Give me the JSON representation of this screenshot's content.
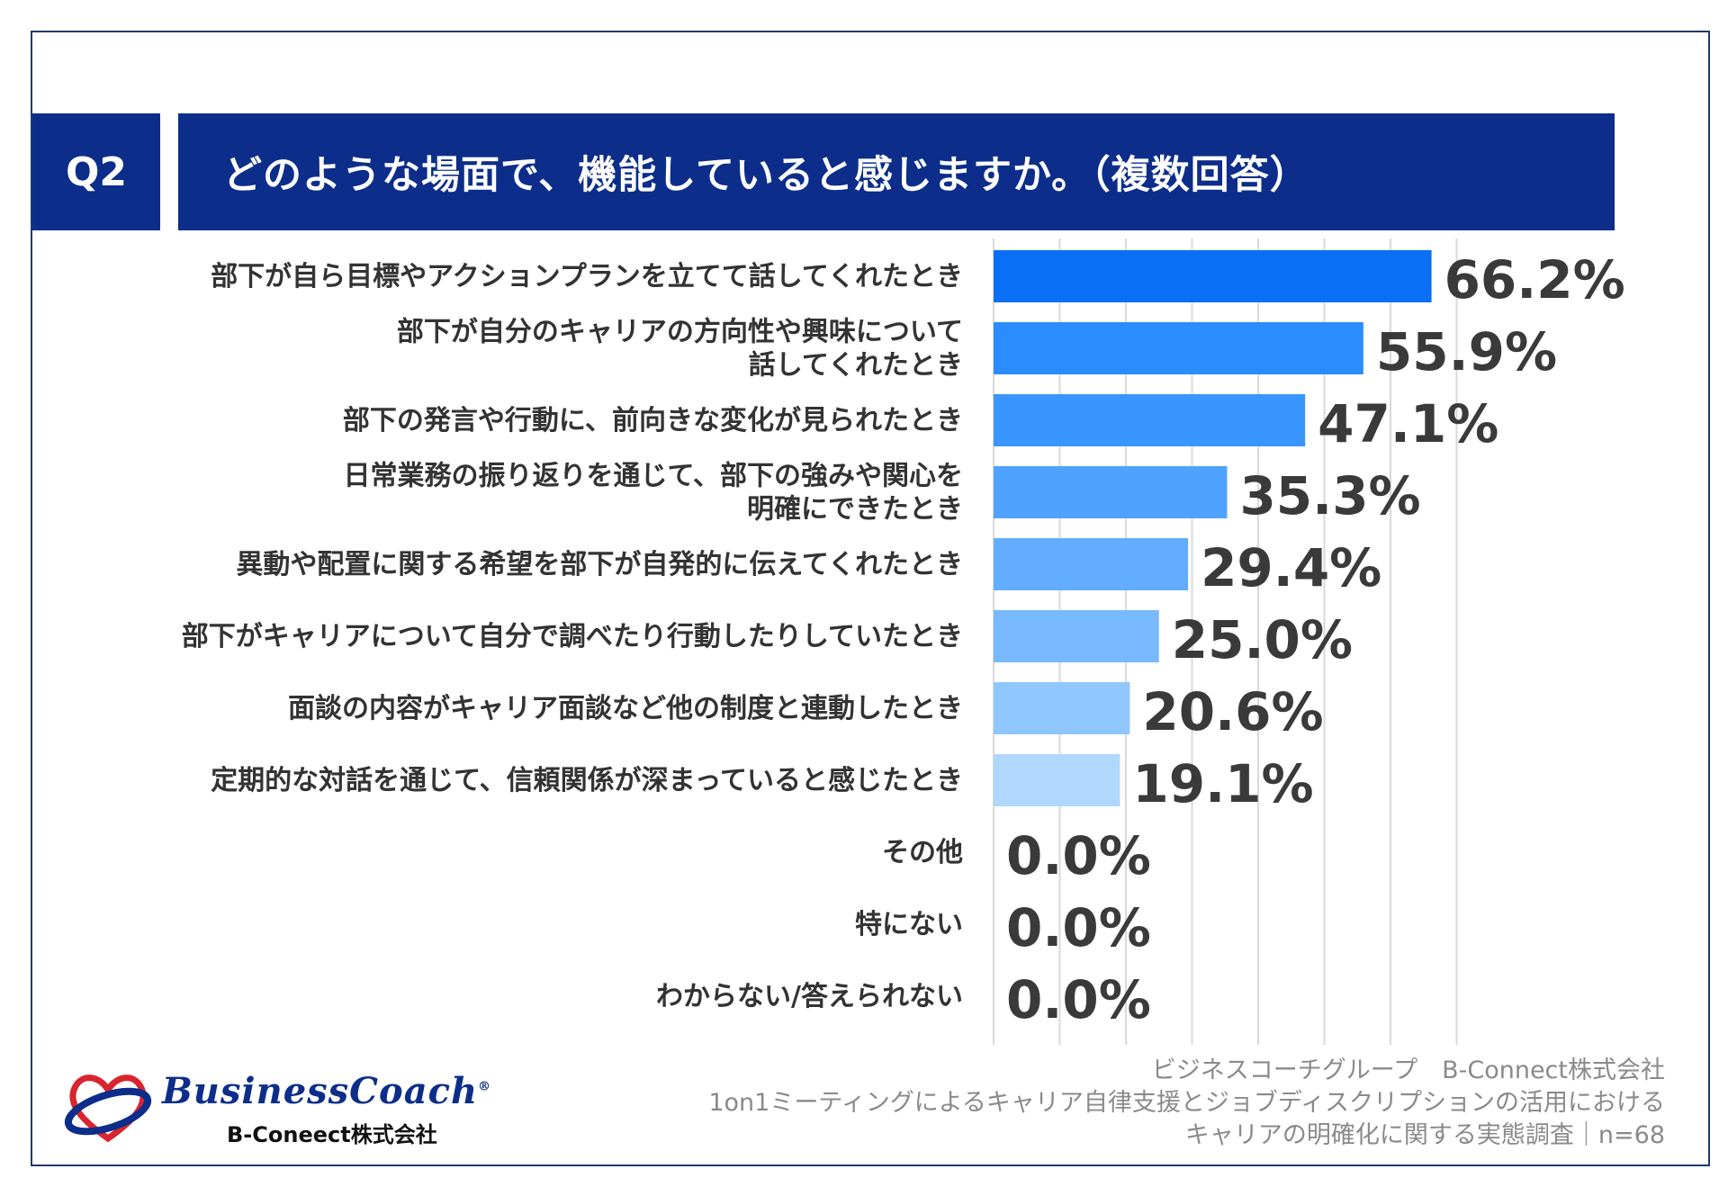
{
  "header": {
    "q_label": "Q2",
    "title": "どのような場面で、機能していると感じますか。（複数回答）"
  },
  "chart_data": {
    "type": "bar",
    "orientation": "horizontal",
    "categories": [
      [
        "部下が自ら目標やアクションプランを立てて話してくれたとき"
      ],
      [
        "部下が自分のキャリアの方向性や興味について",
        "話してくれたとき"
      ],
      [
        "部下の発言や行動に、前向きな変化が見られたとき"
      ],
      [
        "日常業務の振り返りを通じて、部下の強みや関心を",
        "明確にできたとき"
      ],
      [
        "異動や配置に関する希望を部下が自発的に伝えてくれたとき"
      ],
      [
        "部下がキャリアについて自分で調べたり行動したりしていたとき"
      ],
      [
        "面談の内容がキャリア面談など他の制度と連動したとき"
      ],
      [
        "定期的な対話を通じて、信頼関係が深まっていると感じたとき"
      ],
      [
        "その他"
      ],
      [
        "特にない"
      ],
      [
        "わからない/答えられない"
      ]
    ],
    "values": [
      66.2,
      55.9,
      47.1,
      35.3,
      29.4,
      25.0,
      20.6,
      19.1,
      0.0,
      0.0,
      0.0
    ],
    "value_labels": [
      "66.2%",
      "55.9%",
      "47.1%",
      "35.3%",
      "29.4%",
      "25.0%",
      "20.6%",
      "19.1%",
      "0.0%",
      "0.0%",
      "0.0%"
    ],
    "bar_colors": [
      "#0a6ff5",
      "#2a8cff",
      "#3a96ff",
      "#4fa3ff",
      "#62adff",
      "#78b9ff",
      "#91c7ff",
      "#b0d8ff",
      "#c8e2ff",
      "#c8e2ff",
      "#c8e2ff"
    ],
    "xlim": [
      0,
      70
    ],
    "grid": true,
    "grid_step": 10
  },
  "source": {
    "line1": "ビジネスコーチグループ　B-Connect株式会社",
    "line2": "1on1ミーティングによるキャリア自律支援とジョブディスクリプションの活用における",
    "line3": "キャリアの明確化に関する実態調査｜n=68"
  },
  "logo": {
    "name": "BusinessCoach",
    "registered": "®",
    "company": "B-Coneect株式会社"
  }
}
